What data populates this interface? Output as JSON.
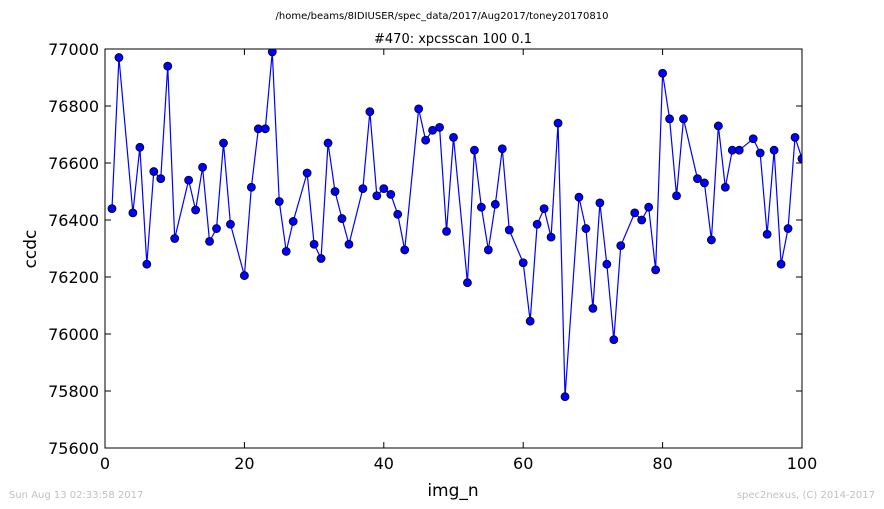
{
  "figure": {
    "super_title": "/home/beams/8IDIUSER/spec_data/2017/Aug2017/toney20170810",
    "footer_left": "Sun Aug 13 02:33:58 2017",
    "footer_right": "spec2nexus, (C) 2014-2017"
  },
  "colors": {
    "series": "#0000ff",
    "marker_fill": "#0000ff",
    "marker_edge": "#000000",
    "axes": "#000000",
    "footer": "#c0c0c0"
  },
  "chart_data": {
    "type": "line",
    "title": "#470: xpcsscan 100 0.1",
    "xlabel": "img_n",
    "ylabel": "ccdc",
    "xlim": [
      0,
      100
    ],
    "ylim": [
      75600,
      77000
    ],
    "xticks": [
      0,
      20,
      40,
      60,
      80,
      100
    ],
    "yticks": [
      75600,
      75800,
      76000,
      76200,
      76400,
      76600,
      76800,
      77000
    ],
    "grid": false,
    "markers": true,
    "series": [
      {
        "x": [
          1,
          2,
          4,
          5,
          6,
          7,
          8,
          9,
          10,
          12,
          13,
          14,
          15,
          16,
          17,
          18,
          20,
          21,
          22,
          23,
          24,
          25,
          26,
          27,
          29,
          30,
          31,
          32,
          33,
          34,
          35,
          37,
          38,
          39,
          40,
          41,
          42,
          43,
          45,
          46,
          47,
          48,
          49,
          50,
          52,
          53,
          54,
          55,
          56,
          57,
          58,
          60,
          61,
          62,
          63,
          64,
          65,
          66,
          68,
          69,
          70,
          71,
          72,
          73,
          74,
          76,
          77,
          78,
          79,
          80,
          81,
          82,
          83,
          85,
          86,
          87,
          88,
          89,
          90,
          91,
          93,
          94,
          95,
          96,
          97,
          98,
          99,
          100
        ],
        "y": [
          76440,
          76970,
          76425,
          76655,
          76245,
          76570,
          76545,
          76940,
          76335,
          76540,
          76435,
          76585,
          76325,
          76370,
          76670,
          76385,
          76205,
          76515,
          76720,
          76720,
          76990,
          76465,
          76290,
          76395,
          76565,
          76315,
          76265,
          76670,
          76500,
          76405,
          76315,
          76510,
          76780,
          76485,
          76510,
          76490,
          76420,
          76295,
          76790,
          76680,
          76715,
          76725,
          76360,
          76690,
          76180,
          76645,
          76445,
          76295,
          76455,
          76650,
          76365,
          76250,
          76045,
          76385,
          76440,
          76340,
          76740,
          75780,
          76480,
          76370,
          76090,
          76460,
          76245,
          75980,
          76310,
          76425,
          76400,
          76445,
          76225,
          76915,
          76755,
          76485,
          76755,
          76545,
          76530,
          76330,
          76730,
          76515,
          76645,
          76645,
          76685,
          76635,
          76350,
          76645,
          76245,
          76370,
          76690,
          76615
        ]
      }
    ]
  }
}
